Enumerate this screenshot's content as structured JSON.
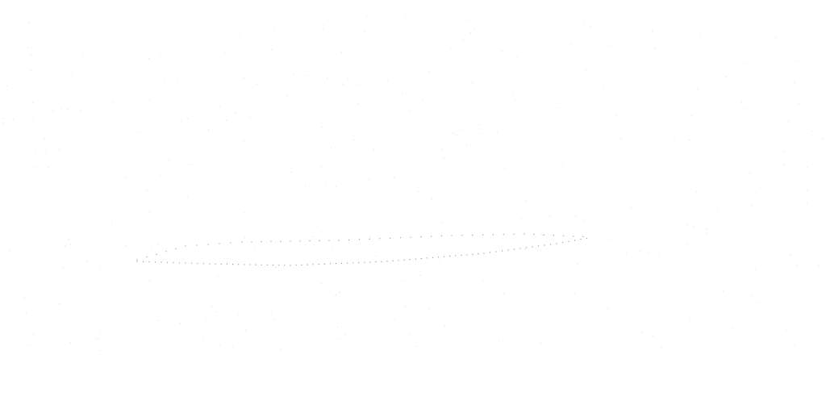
{
  "canvas": {
    "background": "#ffffff",
    "dot_color": "#2a2a2a",
    "speckle_color": "#e4e4ec"
  },
  "content": {
    "visible_text": ""
  }
}
